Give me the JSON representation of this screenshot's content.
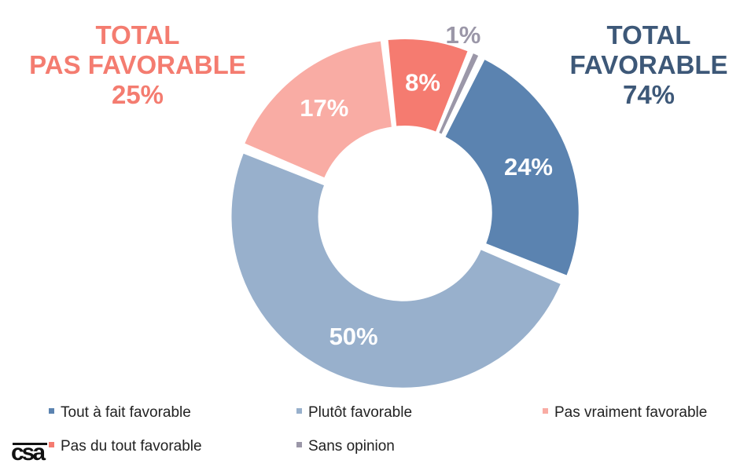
{
  "chart_data": {
    "type": "pie",
    "title": "",
    "categories": [
      "Tout à fait favorable",
      "Plutôt favorable",
      "Pas vraiment favorable",
      "Pas du tout favorable",
      "Sans opinion"
    ],
    "values": [
      24,
      50,
      17,
      8,
      1
    ],
    "labels": [
      "24%",
      "50%",
      "17%",
      "8%",
      "1%"
    ],
    "colors": [
      "#5b83b0",
      "#98b0cc",
      "#f9aca4",
      "#f57b70",
      "#9b97a8"
    ],
    "label_colors": [
      "#ffffff",
      "#ffffff",
      "#ffffff",
      "#ffffff",
      "#9b97a8"
    ],
    "legend_position": "bottom",
    "donut": true
  },
  "totals": {
    "unfavorable": {
      "line1": "TOTAL",
      "line2": "PAS FAVORABLE",
      "value": "25%",
      "color": "#f47c70"
    },
    "favorable": {
      "line1": "TOTAL",
      "line2": "FAVORABLE",
      "value": "74%",
      "color": "#3d5878"
    }
  },
  "logo": {
    "text": "csa"
  }
}
